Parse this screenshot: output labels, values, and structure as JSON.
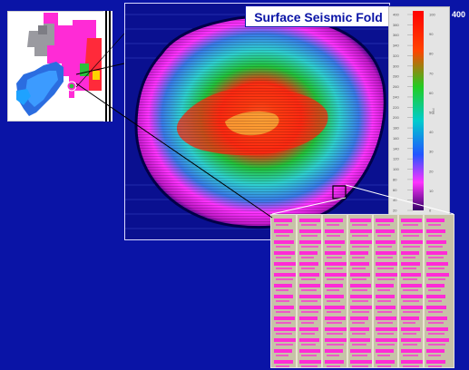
{
  "title": "Surface Seismic Fold",
  "scale": {
    "max_label": "400",
    "left_ticks": [
      "400",
      "380",
      "360",
      "340",
      "320",
      "300",
      "280",
      "260",
      "240",
      "220",
      "200",
      "180",
      "160",
      "140",
      "120",
      "100",
      "80",
      "60",
      "40",
      "20"
    ],
    "right_ticks": [
      "100",
      "90",
      "80",
      "70",
      "60",
      "50",
      "40",
      "30",
      "20",
      "10",
      "0"
    ],
    "axis_label": "fold"
  },
  "colors": {
    "background": "#0a14a6",
    "fold_low": "#000080",
    "fold_mid_low": "#ff33ff",
    "fold_mid": "#2fd0d0",
    "fold_mid_high": "#23c23a",
    "fold_high": "#ff2a12",
    "fold_peak": "#ffd34d",
    "zoom_magenta": "#ff2bd6",
    "zoom_tan": "#c7c2a8"
  }
}
